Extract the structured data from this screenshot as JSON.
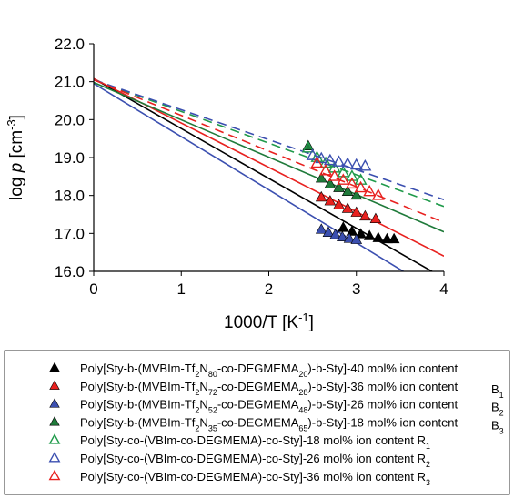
{
  "chart_data": {
    "type": "scatter",
    "xlabel": {
      "text": "1000/T [K",
      "sup": "-1",
      "tail": "]"
    },
    "ylabel": {
      "pre": "log ",
      "italic": "p",
      "mid": " [cm",
      "sup": "-3",
      "tail": "]"
    },
    "xlim": [
      0,
      4
    ],
    "ylim": [
      16,
      22
    ],
    "xticks": [
      {
        "v": 0,
        "label": "0"
      },
      {
        "v": 1,
        "label": "1"
      },
      {
        "v": 2,
        "label": "2"
      },
      {
        "v": 3,
        "label": "3"
      },
      {
        "v": 4,
        "label": "4"
      }
    ],
    "yticks": [
      {
        "v": 16,
        "label": "16.0"
      },
      {
        "v": 17,
        "label": "17.0"
      },
      {
        "v": 18,
        "label": "18.0"
      },
      {
        "v": 19,
        "label": "19.0"
      },
      {
        "v": 20,
        "label": "20.0"
      },
      {
        "v": 21,
        "label": "21.0"
      },
      {
        "v": 22,
        "label": "22.0"
      }
    ],
    "grid": false,
    "legend_position": "below",
    "series": [
      {
        "color": "#000000",
        "marker": "triangle-filled",
        "legend": [
          {
            "t": "Poly[Sty-b-(MVBIm-Tf"
          },
          {
            "t": "2",
            "sub": true
          },
          {
            "t": "N"
          },
          {
            "t": "80",
            "sub": true
          },
          {
            "t": "-co-DEGMEMA"
          },
          {
            "t": "20",
            "sub": true
          },
          {
            "t": ")-b-Sty]-40 mol% ion content"
          }
        ],
        "side": [],
        "points": [
          [
            2.85,
            17.15
          ],
          [
            2.95,
            17.05
          ],
          [
            3.05,
            16.98
          ],
          [
            3.15,
            16.93
          ],
          [
            3.25,
            16.88
          ],
          [
            3.35,
            16.85
          ],
          [
            3.43,
            16.85
          ]
        ],
        "fit": {
          "style": "solid",
          "y0": 21.08,
          "slope": -1.315
        }
      },
      {
        "color": "#e8211f",
        "marker": "triangle-filled",
        "legend": [
          {
            "t": "Poly[Sty-b-(MVBIm-Tf"
          },
          {
            "t": "2",
            "sub": true
          },
          {
            "t": "N"
          },
          {
            "t": "72",
            "sub": true
          },
          {
            "t": "-co-DEGMEMA"
          },
          {
            "t": "28",
            "sub": true
          },
          {
            "t": ")-b-Sty]-36 mol% ion content"
          }
        ],
        "side": [
          {
            "t": "B"
          },
          {
            "t": "1",
            "sub": true
          }
        ],
        "points": [
          [
            2.6,
            17.95
          ],
          [
            2.7,
            17.85
          ],
          [
            2.8,
            17.75
          ],
          [
            2.9,
            17.65
          ],
          [
            3.0,
            17.55
          ],
          [
            3.1,
            17.45
          ],
          [
            3.22,
            17.38
          ]
        ],
        "fit": {
          "style": "solid",
          "y0": 21.08,
          "slope": -1.17
        }
      },
      {
        "color": "#3b4fb0",
        "marker": "triangle-filled",
        "legend": [
          {
            "t": "Poly[Sty-b-(MVBIm-Tf"
          },
          {
            "t": "2",
            "sub": true
          },
          {
            "t": "N"
          },
          {
            "t": "52",
            "sub": true
          },
          {
            "t": "-co-DEGMEMA"
          },
          {
            "t": "48",
            "sub": true
          },
          {
            "t": ")-b-Sty]-26 mol% ion content"
          }
        ],
        "side": [
          {
            "t": "B"
          },
          {
            "t": "2",
            "sub": true
          }
        ],
        "points": [
          [
            2.6,
            17.1
          ],
          [
            2.68,
            17.02
          ],
          [
            2.76,
            16.96
          ],
          [
            2.84,
            16.9
          ],
          [
            2.92,
            16.86
          ],
          [
            3.0,
            16.83
          ]
        ],
        "fit": {
          "style": "solid",
          "y0": 20.95,
          "slope": -1.4
        }
      },
      {
        "color": "#1f7a3a",
        "marker": "triangle-filled",
        "legend": [
          {
            "t": "Poly[Sty-b-(MVBIm-Tf"
          },
          {
            "t": "2",
            "sub": true
          },
          {
            "t": "N"
          },
          {
            "t": "35",
            "sub": true
          },
          {
            "t": "-co-DEGMEMA"
          },
          {
            "t": "65",
            "sub": true
          },
          {
            "t": ")-b-Sty]-18 mol% ion content"
          }
        ],
        "side": [
          {
            "t": "B"
          },
          {
            "t": "3",
            "sub": true
          }
        ],
        "points": [
          [
            2.45,
            19.3
          ],
          [
            2.6,
            18.45
          ],
          [
            2.7,
            18.3
          ],
          [
            2.8,
            18.2
          ],
          [
            2.9,
            18.1
          ],
          [
            3.0,
            18.0
          ]
        ],
        "fit": {
          "style": "solid",
          "y0": 20.98,
          "slope": -0.985
        }
      },
      {
        "color": "#1f9a4a",
        "marker": "triangle-open",
        "legend": [
          {
            "t": "Poly[Sty-co-(VBIm-co-DEGMEMA)-co-Sty]-18 mol% ion content "
          },
          {
            "t": "R"
          },
          {
            "t": "1",
            "sub": true
          }
        ],
        "side": [],
        "points": [
          [
            2.45,
            19.25
          ],
          [
            2.55,
            19.0
          ],
          [
            2.65,
            18.85
          ],
          [
            2.75,
            18.72
          ],
          [
            2.85,
            18.6
          ],
          [
            2.95,
            18.5
          ],
          [
            3.05,
            18.4
          ]
        ],
        "fit": {
          "style": "dashed",
          "y0": 21.05,
          "slope": -0.835
        }
      },
      {
        "color": "#3b4fb0",
        "marker": "triangle-open",
        "legend": [
          {
            "t": "Poly[Sty-co-(VBIm-co-DEGMEMA)-co-Sty]-26 mol% ion content "
          },
          {
            "t": "R"
          },
          {
            "t": "2",
            "sub": true
          }
        ],
        "side": [],
        "points": [
          [
            2.5,
            19.05
          ],
          [
            2.6,
            18.97
          ],
          [
            2.7,
            18.92
          ],
          [
            2.8,
            18.88
          ],
          [
            2.9,
            18.83
          ],
          [
            3.0,
            18.8
          ],
          [
            3.1,
            18.77
          ]
        ],
        "fit": {
          "style": "dashed",
          "y0": 21.05,
          "slope": -0.79
        }
      },
      {
        "color": "#e8211f",
        "marker": "triangle-open",
        "legend": [
          {
            "t": "Poly[Sty-co-(VBIm-co-DEGMEMA)-co-Sty]-36 mol% ion content "
          },
          {
            "t": "R"
          },
          {
            "t": "3",
            "sub": true
          }
        ],
        "side": [],
        "points": [
          [
            2.55,
            18.85
          ],
          [
            2.65,
            18.65
          ],
          [
            2.75,
            18.5
          ],
          [
            2.85,
            18.4
          ],
          [
            2.95,
            18.3
          ],
          [
            3.05,
            18.2
          ],
          [
            3.15,
            18.1
          ],
          [
            3.25,
            18.0
          ]
        ],
        "fit": {
          "style": "dashed",
          "y0": 21.05,
          "slope": -0.94
        }
      }
    ]
  }
}
